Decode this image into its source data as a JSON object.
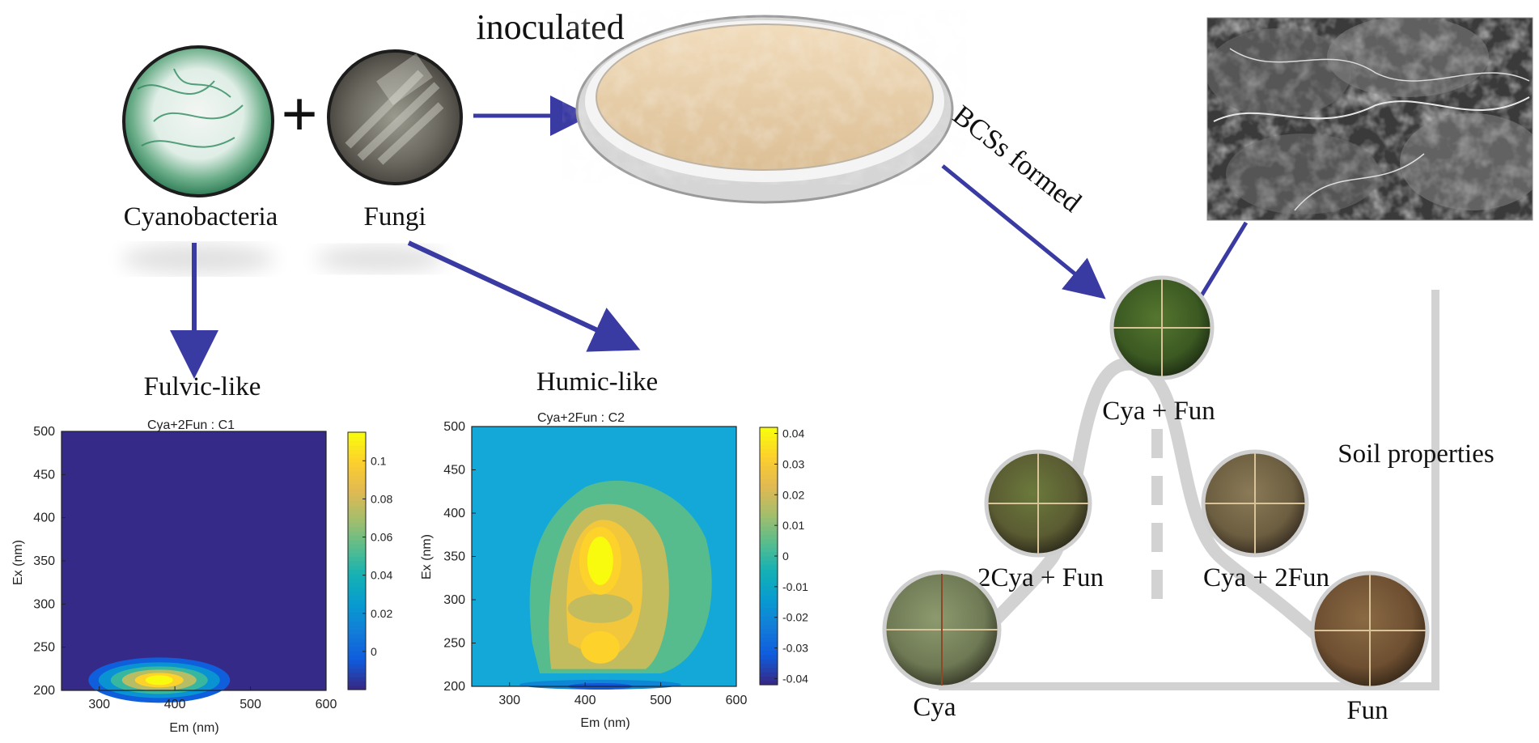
{
  "top": {
    "inoculated": "inoculated",
    "cyanobacteria": "Cyanobacteria",
    "fungi": "Fungi",
    "plus": "+",
    "bcss_formed": "BCSs formed"
  },
  "outcomes": {
    "fulvic": "Fulvic-like",
    "humic": "Humic-like"
  },
  "triangle": {
    "top": "Cya + Fun",
    "mid_left": "2Cya + Fun",
    "mid_right": "Cya + 2Fun",
    "bottom_left": "Cya",
    "bottom_right": "Fun",
    "soil_properties": "Soil properties"
  },
  "colors": {
    "arrow": "#3a3aa3",
    "curve": "#d2d2d2",
    "crust_green": "#3e5e25",
    "crust_brown": "#6b4a2e",
    "petri_sand": "#e8cfa8"
  },
  "chart_data": [
    {
      "type": "heatmap",
      "title": "Cya+2Fun : C1",
      "xlabel": "Em (nm)",
      "ylabel": "Ex (nm)",
      "xlim": [
        250,
        600
      ],
      "ylim": [
        200,
        500
      ],
      "xticks": [
        300,
        400,
        500,
        600
      ],
      "yticks": [
        200,
        250,
        300,
        350,
        400,
        450,
        500
      ],
      "colorbar": {
        "range": [
          -0.02,
          0.115
        ],
        "ticks": [
          0,
          0.02,
          0.04,
          0.06,
          0.08,
          0.1
        ],
        "tick_labels": [
          "0",
          "0.02",
          "0.04",
          "0.06",
          "0.08",
          "0.1"
        ]
      },
      "peak": {
        "em": 390,
        "ex": 210,
        "value": 0.11
      }
    },
    {
      "type": "heatmap",
      "title": "Cya+2Fun : C2",
      "xlabel": "Em (nm)",
      "ylabel": "Ex (nm)",
      "xlim": [
        250,
        600
      ],
      "ylim": [
        200,
        500
      ],
      "xticks": [
        300,
        400,
        500,
        600
      ],
      "yticks": [
        200,
        250,
        300,
        350,
        400,
        450,
        500
      ],
      "colorbar": {
        "range": [
          -0.042,
          0.042
        ],
        "ticks": [
          -0.04,
          -0.03,
          -0.02,
          -0.01,
          0,
          0.01,
          0.02,
          0.03,
          0.04
        ],
        "tick_labels": [
          "-0.04",
          "-0.03",
          "-0.02",
          "-0.01",
          "0",
          "0.01",
          "0.02",
          "0.03",
          "0.04"
        ]
      },
      "peak": {
        "em": 420,
        "ex": 345,
        "value": 0.04
      },
      "secondary_peak": {
        "em": 420,
        "ex": 245,
        "value": 0.03
      }
    }
  ]
}
